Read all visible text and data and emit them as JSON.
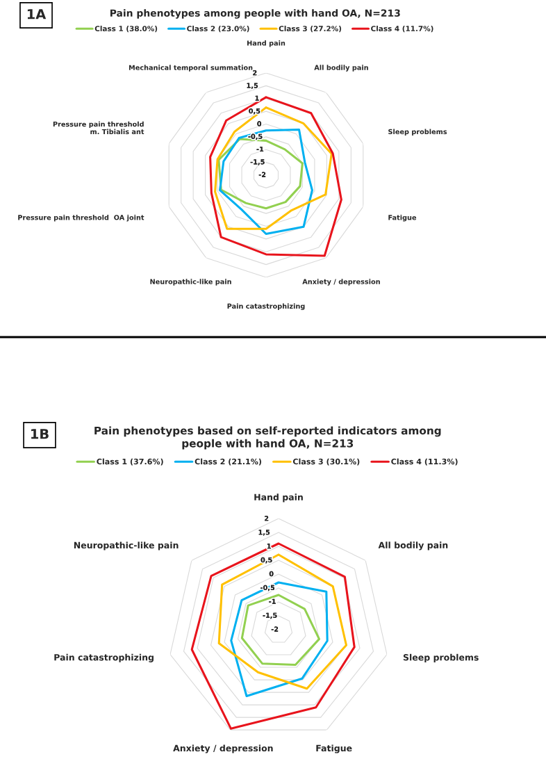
{
  "chart_data": [
    {
      "type": "radar",
      "title": "Pain phenotypes among people with hand OA, N=213",
      "annotations": [
        "1A"
      ],
      "categories": [
        "Hand pain",
        "All bodily pain",
        "Sleep problems",
        "Fatigue",
        "Anxiety / depression",
        "Pain catastrophizing",
        "Neuropathic-like pain",
        "Pressure pain threshold  OA joint",
        "Pressure pain threshold\nm. Tibialis ant",
        "Mechanical temporal summation"
      ],
      "ylim": [
        -2,
        2
      ],
      "yticks": [
        -2,
        {
          "value": -1.5,
          "label": "-1,5"
        },
        -1,
        {
          "value": -0.5,
          "label": "-0,5"
        },
        0,
        {
          "value": 0.5,
          "label": "0,5"
        },
        1,
        {
          "value": 1.5,
          "label": "1,5"
        },
        2
      ],
      "grid": "y",
      "legend": "top",
      "series": [
        {
          "name": "Class 1 (38.0%)",
          "color": "#92d050",
          "values": [
            -0.65,
            -0.75,
            -0.5,
            -0.6,
            -0.7,
            -0.7,
            -0.65,
            -0.15,
            -0.05,
            -0.25
          ]
        },
        {
          "name": "Class 2 (23.0%)",
          "color": "#00b0f0",
          "values": [
            -0.25,
            0.2,
            -0.4,
            -0.1,
            0.5,
            0.3,
            -0.35,
            -0.1,
            -0.25,
            -0.2
          ]
        },
        {
          "name": "Class 3 (27.2%)",
          "color": "#ffc000",
          "values": [
            0.65,
            0.5,
            0.7,
            0.45,
            -0.3,
            0.1,
            0.6,
            0.1,
            0.0,
            0.1
          ]
        },
        {
          "name": "Class 4 (11.7%)",
          "color": "#e8141c",
          "values": [
            1.05,
            1.0,
            0.75,
            1.1,
            1.9,
            1.1,
            1.0,
            0.25,
            0.3,
            0.65
          ]
        }
      ]
    },
    {
      "type": "radar",
      "title": "Pain phenotypes based on self-reported indicators among\npeople with hand OA, N=213",
      "annotations": [
        "1B"
      ],
      "categories": [
        "Hand pain",
        "All bodily pain",
        "Sleep problems",
        "Fatigue",
        "Anxiety / depression",
        "Pain catastrophizing",
        "Neuropathic-like pain"
      ],
      "ylim": [
        -2,
        2
      ],
      "yticks": [
        -2,
        {
          "value": -1.5,
          "label": "-1,5"
        },
        -1,
        {
          "value": -0.5,
          "label": "-0,5"
        },
        0,
        {
          "value": 0.5,
          "label": "0,5"
        },
        1,
        {
          "value": 1.5,
          "label": "1,5"
        },
        2
      ],
      "grid": "y",
      "legend": "top",
      "series": [
        {
          "name": "Class 1 (37.6%)",
          "color": "#92d050",
          "values": [
            -0.75,
            -0.8,
            -0.5,
            -0.6,
            -0.65,
            -0.65,
            -0.6
          ]
        },
        {
          "name": "Class 2 (21.1%)",
          "color": "#00b0f0",
          "values": [
            -0.3,
            0.2,
            -0.2,
            -0.05,
            0.65,
            -0.25,
            -0.3
          ]
        },
        {
          "name": "Class 3 (30.1%)",
          "color": "#ffc000",
          "values": [
            0.7,
            0.5,
            0.5,
            0.35,
            -0.3,
            0.2,
            0.6
          ]
        },
        {
          "name": "Class 4 (11.3%)",
          "color": "#e8141c",
          "values": [
            1.1,
            1.05,
            0.8,
            1.1,
            1.95,
            1.2,
            1.1
          ]
        }
      ]
    }
  ]
}
